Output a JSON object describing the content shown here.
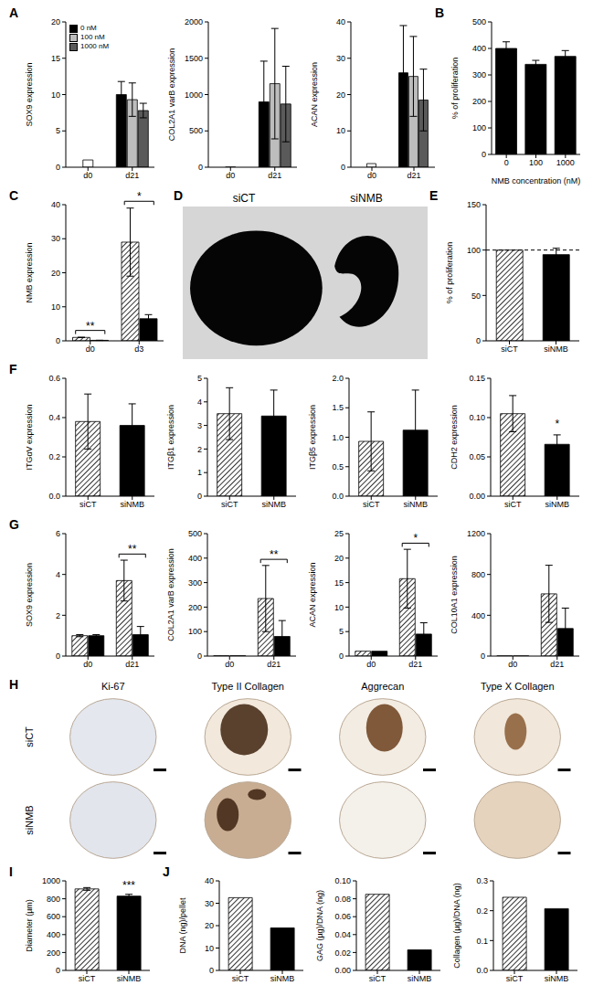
{
  "chart_data": [
    {
      "panel": "A",
      "type": "bar",
      "y_label": "SOX9 expression",
      "categories": [
        "d0",
        "d21"
      ],
      "baseline": {
        "category": "d0",
        "value": 1,
        "color": "#ffffff"
      },
      "series": [
        {
          "name": "0 nM",
          "color": "#000000",
          "values": [
            null,
            10.0
          ],
          "errors": [
            null,
            1.8
          ]
        },
        {
          "name": "100 nM",
          "color": "#bdbdbd",
          "values": [
            null,
            9.3
          ],
          "errors": [
            null,
            2.3
          ]
        },
        {
          "name": "1000 nM",
          "color": "#5a5a5a",
          "values": [
            null,
            7.8
          ],
          "errors": [
            null,
            1.0
          ]
        }
      ],
      "ylim": [
        0,
        20
      ],
      "yticks": [
        0,
        5,
        10,
        15,
        20
      ],
      "legend": "upper left"
    },
    {
      "type": "bar",
      "y_label": "COL2A1 varB expression",
      "categories": [
        "d0",
        "d21"
      ],
      "baseline": {
        "category": "d0",
        "value": 1,
        "color": "#ffffff"
      },
      "series": [
        {
          "name": "0 nM",
          "color": "#000000",
          "values": [
            null,
            900
          ],
          "errors": [
            null,
            560
          ]
        },
        {
          "name": "100 nM",
          "color": "#bdbdbd",
          "values": [
            null,
            1150
          ],
          "errors": [
            null,
            760
          ]
        },
        {
          "name": "1000 nM",
          "color": "#5a5a5a",
          "values": [
            null,
            870
          ],
          "errors": [
            null,
            520
          ]
        }
      ],
      "ylim": [
        0,
        2000
      ],
      "yticks": [
        0,
        500,
        1000,
        1500,
        2000
      ]
    },
    {
      "type": "bar",
      "y_label": "ACAN expression",
      "categories": [
        "d0",
        "d21"
      ],
      "baseline": {
        "category": "d0",
        "value": 1,
        "color": "#ffffff"
      },
      "series": [
        {
          "name": "0 nM",
          "color": "#000000",
          "values": [
            null,
            26
          ],
          "errors": [
            null,
            13
          ]
        },
        {
          "name": "100 nM",
          "color": "#bdbdbd",
          "values": [
            null,
            25
          ],
          "errors": [
            null,
            11
          ]
        },
        {
          "name": "1000 nM",
          "color": "#5a5a5a",
          "values": [
            null,
            18.5
          ],
          "errors": [
            null,
            8.5
          ]
        }
      ],
      "ylim": [
        0,
        40
      ],
      "yticks": [
        0,
        10,
        20,
        30,
        40
      ]
    },
    {
      "panel": "B",
      "type": "bar",
      "y_label": "% of proliferation",
      "x_label": "NMB concentration (nM)",
      "categories": [
        "0",
        "100",
        "1000"
      ],
      "series": [
        {
          "color": "#000000",
          "values": [
            400,
            340,
            370
          ],
          "errors": [
            25,
            15,
            22
          ]
        }
      ],
      "ylim": [
        0,
        500
      ],
      "yticks": [
        0,
        100,
        200,
        300,
        400,
        500
      ]
    },
    {
      "panel": "C",
      "type": "bar",
      "y_label": "NMB expression",
      "categories": [
        "d0",
        "d3"
      ],
      "series": [
        {
          "name": "siCT",
          "color": "#000000",
          "line_style": "hatched",
          "values": [
            1,
            29
          ],
          "errors": [
            0.05,
            10
          ]
        },
        {
          "name": "siNMB",
          "color": "#000000",
          "values": [
            0.15,
            6.5
          ],
          "errors": [
            0.03,
            1.2
          ]
        }
      ],
      "ylim": [
        0,
        40
      ],
      "yticks": [
        0,
        10,
        20,
        30,
        40
      ],
      "annotations": [
        {
          "text": "**",
          "category": "d0"
        },
        {
          "text": "*",
          "category": "d3"
        }
      ]
    },
    {
      "panel": "D",
      "type": "image",
      "labels": [
        "siCT",
        "siNMB"
      ]
    },
    {
      "panel": "E",
      "type": "bar",
      "y_label": "% of proliferation",
      "categories": [
        "siCT",
        "siNMB"
      ],
      "stacked": true,
      "series": [
        {
          "name": "siCT",
          "color": "#000000",
          "line_style": "hatched",
          "values": [
            100,
            null
          ],
          "errors": [
            null,
            null
          ]
        },
        {
          "name": "siNMB",
          "color": "#000000",
          "values": [
            null,
            95
          ],
          "errors": [
            null,
            7
          ]
        }
      ],
      "ylim": [
        0,
        150
      ],
      "yticks": [
        0,
        50,
        100,
        150
      ],
      "reference_line": 100
    },
    {
      "panel": "F",
      "type": "bar",
      "y_label": "ITGαV expression",
      "categories": [
        "siCT",
        "siNMB"
      ],
      "stacked": true,
      "series": [
        {
          "name": "siCT",
          "color": "#000000",
          "line_style": "hatched",
          "values": [
            0.38,
            null
          ],
          "errors": [
            0.14,
            null
          ]
        },
        {
          "name": "siNMB",
          "color": "#000000",
          "values": [
            null,
            0.36
          ],
          "errors": [
            null,
            0.11
          ]
        }
      ],
      "ylim": [
        0,
        0.6
      ],
      "yticks": [
        {
          "value": 0,
          "label": "0.0"
        },
        0.2,
        0.4,
        0.6
      ]
    },
    {
      "type": "bar",
      "y_label": "ITGβ1 expression",
      "categories": [
        "siCT",
        "siNMB"
      ],
      "stacked": true,
      "series": [
        {
          "name": "siCT",
          "color": "#000000",
          "line_style": "hatched",
          "values": [
            3.5,
            null
          ],
          "errors": [
            1.1,
            null
          ]
        },
        {
          "name": "siNMB",
          "color": "#000000",
          "values": [
            null,
            3.4
          ],
          "errors": [
            null,
            1.1
          ]
        }
      ],
      "ylim": [
        0,
        5
      ],
      "yticks": [
        0,
        1,
        2,
        3,
        4,
        5
      ]
    },
    {
      "type": "bar",
      "y_label": "ITGβ5 expression",
      "categories": [
        "siCT",
        "siNMB"
      ],
      "stacked": true,
      "series": [
        {
          "name": "siCT",
          "color": "#000000",
          "line_style": "hatched",
          "values": [
            0.93,
            null
          ],
          "errors": [
            0.5,
            null
          ]
        },
        {
          "name": "siNMB",
          "color": "#000000",
          "values": [
            null,
            1.12
          ],
          "errors": [
            null,
            0.68
          ]
        }
      ],
      "ylim": [
        0,
        2
      ],
      "yticks": [
        {
          "value": 0,
          "label": "0.0"
        },
        0.5,
        {
          "value": 1,
          "label": "1.0"
        },
        1.5,
        {
          "value": 2,
          "label": "2.0"
        }
      ]
    },
    {
      "type": "bar",
      "y_label": "CDH2 expression",
      "categories": [
        "siCT",
        "siNMB"
      ],
      "stacked": true,
      "series": [
        {
          "name": "siCT",
          "color": "#000000",
          "line_style": "hatched",
          "values": [
            0.105,
            null
          ],
          "errors": [
            0.023,
            null
          ]
        },
        {
          "name": "siNMB",
          "color": "#000000",
          "values": [
            null,
            0.066
          ],
          "errors": [
            null,
            0.012
          ]
        }
      ],
      "ylim": [
        0,
        0.15
      ],
      "yticks": [
        {
          "value": 0,
          "label": "0.00"
        },
        0.05,
        {
          "value": 0.1,
          "label": "0.10"
        },
        0.15
      ],
      "annotations": [
        {
          "text": "*",
          "category": "siNMB"
        }
      ]
    },
    {
      "panel": "G",
      "type": "bar",
      "y_label": "SOX9 expression",
      "categories": [
        "d0",
        "d21"
      ],
      "series": [
        {
          "name": "siCT",
          "color": "#000000",
          "line_style": "hatched",
          "values": [
            1,
            3.7
          ],
          "errors": [
            0.05,
            1.0
          ]
        },
        {
          "name": "siNMB",
          "color": "#000000",
          "values": [
            1,
            1.05
          ],
          "errors": [
            0.05,
            0.4
          ]
        }
      ],
      "ylim": [
        0,
        6
      ],
      "yticks": [
        0,
        2,
        4,
        6
      ],
      "annotations": [
        {
          "text": "**",
          "category": "d21"
        }
      ]
    },
    {
      "type": "bar",
      "y_label": "COL2A1 varB expression",
      "categories": [
        "d0",
        "d21"
      ],
      "series": [
        {
          "name": "siCT",
          "color": "#000000",
          "line_style": "hatched",
          "values": [
            1,
            235
          ],
          "errors": [
            null,
            135
          ]
        },
        {
          "name": "siNMB",
          "color": "#000000",
          "values": [
            1,
            80
          ],
          "errors": [
            null,
            65
          ]
        }
      ],
      "ylim": [
        0,
        500
      ],
      "yticks": [
        0,
        100,
        200,
        300,
        400,
        500
      ],
      "annotations": [
        {
          "text": "**",
          "category": "d21"
        }
      ]
    },
    {
      "type": "bar",
      "y_label": "ACAN expression",
      "categories": [
        "d0",
        "d21"
      ],
      "series": [
        {
          "name": "siCT",
          "color": "#000000",
          "line_style": "hatched",
          "values": [
            1,
            15.8
          ],
          "errors": [
            null,
            6
          ]
        },
        {
          "name": "siNMB",
          "color": "#000000",
          "values": [
            1,
            4.5
          ],
          "errors": [
            null,
            2.3
          ]
        }
      ],
      "ylim": [
        0,
        25
      ],
      "yticks": [
        0,
        5,
        10,
        15,
        20,
        25
      ],
      "annotations": [
        {
          "text": "*",
          "category": "d21"
        }
      ]
    },
    {
      "type": "bar",
      "y_label": "COL10A1 expression",
      "categories": [
        "d0",
        "d21"
      ],
      "series": [
        {
          "name": "siCT",
          "color": "#000000",
          "line_style": "hatched",
          "values": [
            1,
            610
          ],
          "errors": [
            null,
            280
          ]
        },
        {
          "name": "siNMB",
          "color": "#000000",
          "values": [
            1,
            270
          ],
          "errors": [
            null,
            200
          ]
        }
      ],
      "ylim": [
        0,
        1200
      ],
      "yticks": [
        0,
        400,
        800,
        1200
      ]
    },
    {
      "panel": "H",
      "type": "image",
      "columns": [
        "Ki-67",
        "Type II Collagen",
        "Aggrecan",
        "Type X Collagen"
      ],
      "rows": [
        "siCT",
        "siNMB"
      ]
    },
    {
      "panel": "I",
      "type": "bar",
      "y_label": "Diameter (µm)",
      "categories": [
        "siCT",
        "siNMB"
      ],
      "stacked": true,
      "series": [
        {
          "name": "siCT",
          "color": "#000000",
          "line_style": "hatched",
          "values": [
            910,
            null
          ],
          "errors": [
            15,
            null
          ]
        },
        {
          "name": "siNMB",
          "color": "#000000",
          "values": [
            null,
            830
          ],
          "errors": [
            null,
            20
          ]
        }
      ],
      "ylim": [
        0,
        1000
      ],
      "yticks": [
        0,
        200,
        400,
        600,
        800,
        1000
      ],
      "annotations": [
        {
          "text": "***",
          "category": "siNMB"
        }
      ]
    },
    {
      "panel": "J",
      "type": "bar",
      "y_label": "DNA (ng)/pellet",
      "categories": [
        "siCT",
        "siNMB"
      ],
      "stacked": true,
      "series": [
        {
          "name": "siCT",
          "color": "#000000",
          "line_style": "hatched",
          "values": [
            32.5,
            null
          ]
        },
        {
          "name": "siNMB",
          "color": "#000000",
          "values": [
            null,
            19
          ]
        }
      ],
      "ylim": [
        0,
        40
      ],
      "yticks": [
        0,
        10,
        20,
        30,
        40
      ]
    },
    {
      "type": "bar",
      "y_label": "GAG (µg)/DNA (ng)",
      "categories": [
        "siCT",
        "siNMB"
      ],
      "stacked": true,
      "series": [
        {
          "name": "siCT",
          "color": "#000000",
          "line_style": "hatched",
          "values": [
            0.085,
            null
          ]
        },
        {
          "name": "siNMB",
          "color": "#000000",
          "values": [
            null,
            0.023
          ]
        }
      ],
      "ylim": [
        0,
        0.1
      ],
      "yticks": [
        {
          "value": 0,
          "label": "0.00"
        },
        0.02,
        0.04,
        0.06,
        0.08,
        {
          "value": 0.1,
          "label": "0.10"
        }
      ]
    },
    {
      "type": "bar",
      "y_label": "Collagen (µg)/DNA (ng)",
      "categories": [
        "siCT",
        "siNMB"
      ],
      "stacked": true,
      "series": [
        {
          "name": "siCT",
          "color": "#000000",
          "line_style": "hatched",
          "values": [
            0.245,
            null
          ]
        },
        {
          "name": "siNMB",
          "color": "#000000",
          "values": [
            null,
            0.207
          ]
        }
      ],
      "ylim": [
        0,
        0.3
      ],
      "yticks": [
        {
          "value": 0,
          "label": "0.0"
        },
        0.1,
        0.2,
        0.3
      ]
    }
  ]
}
